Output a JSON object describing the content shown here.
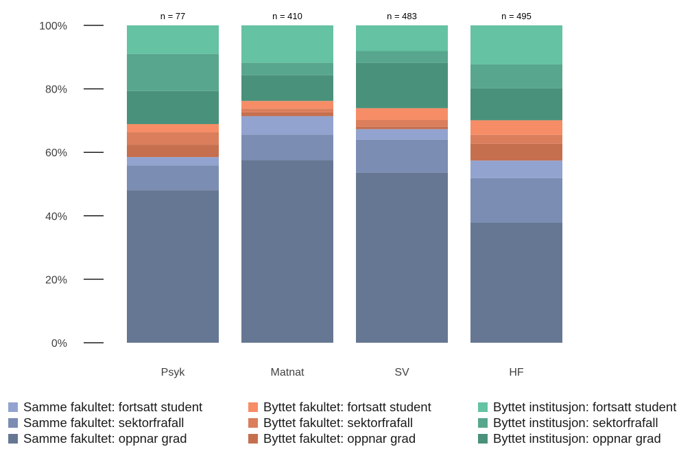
{
  "chart_data": {
    "type": "bar",
    "stacked": true,
    "normalized": true,
    "categories": [
      "Psyk",
      "Matnat",
      "SV",
      "HF"
    ],
    "annotations": [
      "n = 77",
      "n = 410",
      "n = 483",
      "n = 495"
    ],
    "ylim": [
      0,
      100
    ],
    "yticks": [
      "0%",
      "20%",
      "40%",
      "60%",
      "80%",
      "100%"
    ],
    "grid": false,
    "legend_position": "bottom",
    "series": [
      {
        "name": "Samme fakultet: oppnar grad",
        "color": "#667793",
        "values": [
          48.1,
          57.6,
          53.6,
          37.8
        ]
      },
      {
        "name": "Samme fakultet: sektorfrafall",
        "color": "#7b8db3",
        "values": [
          7.8,
          8.0,
          10.4,
          14.1
        ]
      },
      {
        "name": "Samme fakultet: fortsatt student",
        "color": "#92a3cf",
        "values": [
          2.6,
          5.8,
          3.3,
          5.5
        ]
      },
      {
        "name": "Byttet fakultet: oppnar grad",
        "color": "#c56f4f",
        "values": [
          3.9,
          1.2,
          0.8,
          5.3
        ]
      },
      {
        "name": "Byttet fakultet: sektorfrafall",
        "color": "#db7e5c",
        "values": [
          3.9,
          1.2,
          2.1,
          2.8
        ]
      },
      {
        "name": "Byttet fakultet: fortsatt student",
        "color": "#f68d66",
        "values": [
          2.6,
          2.4,
          3.7,
          4.6
        ]
      },
      {
        "name": "Byttet institusjon: oppnar grad",
        "color": "#4a917b",
        "values": [
          10.4,
          8.1,
          14.3,
          10.1
        ]
      },
      {
        "name": "Byttet institusjon: sektorfrafall",
        "color": "#58a68e",
        "values": [
          11.7,
          3.9,
          3.7,
          7.5
        ]
      },
      {
        "name": "Byttet institusjon: fortsatt student",
        "color": "#65c2a3",
        "values": [
          9.0,
          11.8,
          8.1,
          12.3
        ]
      }
    ]
  },
  "legend": {
    "columns": [
      [
        "Samme fakultet: fortsatt student",
        "Samme fakultet: sektorfrafall",
        "Samme fakultet: oppnar grad"
      ],
      [
        "Byttet fakultet: fortsatt student",
        "Byttet fakultet: sektorfrafall",
        "Byttet fakultet: oppnar grad"
      ],
      [
        "Byttet institusjon: fortsatt student",
        "Byttet institusjon: sektorfrafall",
        "Byttet institusjon: oppnar grad"
      ]
    ]
  }
}
